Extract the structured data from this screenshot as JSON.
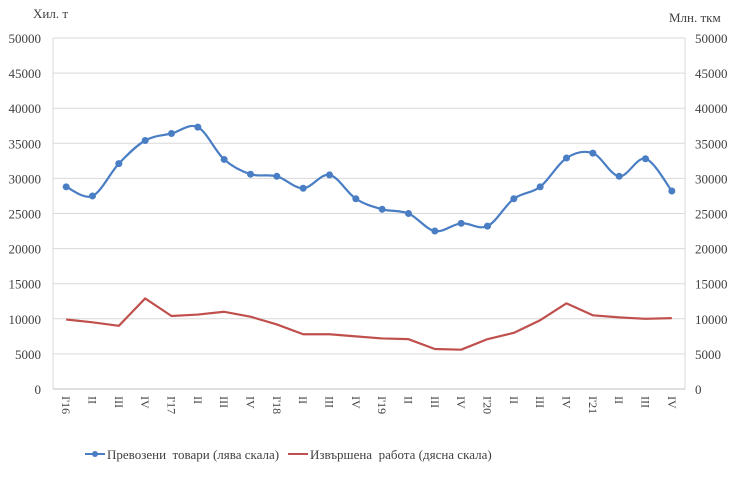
{
  "chart_data": {
    "type": "line",
    "title": "",
    "left_axis_label": "Хил. т",
    "right_axis_label": "Млн. ткм",
    "ylim": [
      0,
      50000
    ],
    "yticks": [
      0,
      5000,
      10000,
      15000,
      20000,
      25000,
      30000,
      35000,
      40000,
      45000,
      50000
    ],
    "grid": true,
    "legend_position": "bottom",
    "categories": [
      "I'16",
      "II",
      "III",
      "IV",
      "I'17",
      "II",
      "III",
      "IV",
      "I'18",
      "II",
      "III",
      "IV",
      "I'19",
      "II",
      "III",
      "IV",
      "I'20",
      "II",
      "III",
      "IV",
      "I'21",
      "II",
      "III",
      "IV"
    ],
    "series": [
      {
        "name": "Превозени  товари (лява скала)",
        "axis": "left",
        "color": "#4a7ec4",
        "markers": true,
        "smooth": true,
        "values": [
          28800,
          27500,
          32100,
          35400,
          36400,
          37300,
          32700,
          30600,
          30300,
          28600,
          30500,
          27100,
          25600,
          25000,
          22500,
          23600,
          23200,
          27100,
          28800,
          32900,
          33600,
          30300,
          32800,
          28200
        ]
      },
      {
        "name": "Извършена  работа (дясна скала)",
        "axis": "right",
        "color": "#c0504d",
        "markers": false,
        "smooth": false,
        "values": [
          9900,
          9500,
          9000,
          12900,
          10400,
          10600,
          11000,
          10300,
          9200,
          7800,
          7800,
          7500,
          7200,
          7100,
          5700,
          5600,
          7100,
          8000,
          9800,
          12200,
          10500,
          10200,
          10000,
          10100
        ]
      }
    ]
  }
}
